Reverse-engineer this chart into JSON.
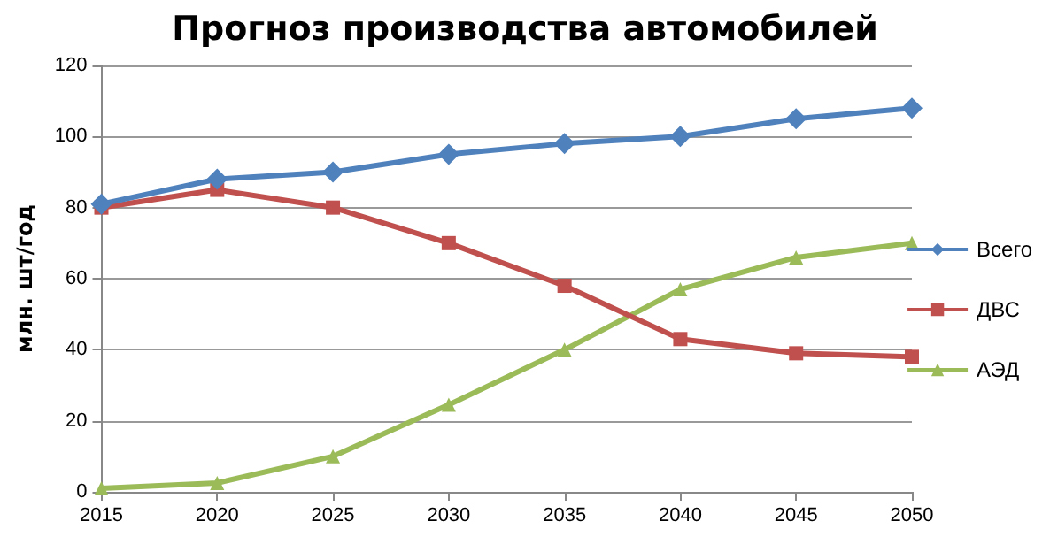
{
  "chart_data": {
    "type": "line",
    "title": "Прогноз производства автомобилей",
    "ylabel": "млн. шт/год",
    "categories": [
      "2015",
      "2020",
      "2025",
      "2030",
      "2035",
      "2040",
      "2045",
      "2050"
    ],
    "series": [
      {
        "name": "Всего",
        "color": "#4f81bd",
        "marker": "diamond",
        "values": [
          81,
          88,
          90,
          95,
          98,
          100,
          105,
          108
        ]
      },
      {
        "name": "ДВС",
        "color": "#c0504d",
        "marker": "square",
        "values": [
          80,
          85,
          80,
          70,
          58,
          43,
          39,
          38
        ]
      },
      {
        "name": "АЭД",
        "color": "#9bbb59",
        "marker": "triangle",
        "values": [
          1,
          2.5,
          10,
          24.5,
          40,
          57,
          66,
          70
        ]
      }
    ],
    "ylim": [
      0,
      120
    ],
    "yticks": [
      0,
      20,
      40,
      60,
      80,
      100,
      120
    ],
    "grid": "y",
    "legend": "right"
  }
}
